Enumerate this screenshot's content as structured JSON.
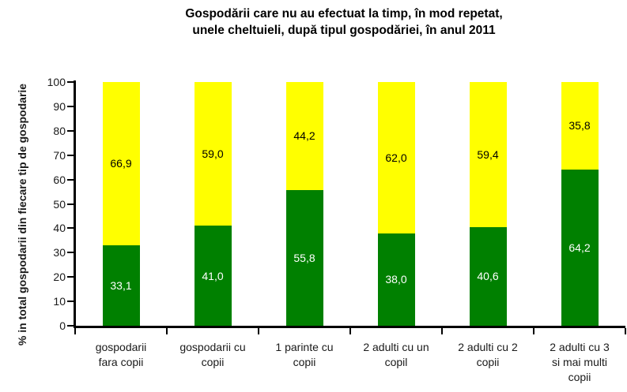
{
  "chart_data": {
    "type": "bar",
    "stacked": true,
    "title": "Gospodării care nu au efectuat la timp, în mod repetat, unele cheltuieli, după tipul gospodăriei, în anul 2011",
    "title_lines": [
      "Gospodării care nu au efectuat la timp, în mod repetat,",
      "unele cheltuieli, după tipul gospodăriei, în anul 2011"
    ],
    "ylabel": "% in total gospodarii din fiecare tip de gospodarie",
    "xlabel": "",
    "ylim": [
      0,
      100
    ],
    "yticks": [
      0,
      10,
      20,
      30,
      40,
      50,
      60,
      70,
      80,
      90,
      100
    ],
    "grid": false,
    "legend": "none",
    "categories": [
      "gospodarii fara copii",
      "gospodarii cu copii",
      "1 parinte cu copii",
      "2 adulti cu un copil",
      "2 adulti cu 2 copii",
      "2 adulti cu 3 si mai multi copii"
    ],
    "category_lines": [
      [
        "gospodarii",
        "fara copii"
      ],
      [
        "gospodarii cu",
        "copii"
      ],
      [
        "1 parinte cu",
        "copii"
      ],
      [
        "2 adulti cu un",
        "copil"
      ],
      [
        "2 adulti cu 2",
        "copii"
      ],
      [
        "2 adulti cu 3",
        "si mai multi",
        "copii"
      ]
    ],
    "series": [
      {
        "name": "green-bottom-segment",
        "color": "#008000",
        "label_color": "#ffffff",
        "values": [
          33.1,
          41.0,
          55.8,
          38.0,
          40.6,
          64.2
        ],
        "labels": [
          "33,1",
          "41,0",
          "55,8",
          "38,0",
          "40,6",
          "64,2"
        ]
      },
      {
        "name": "yellow-top-segment",
        "color": "#ffff00",
        "label_color": "#000000",
        "values": [
          66.9,
          59.0,
          44.2,
          62.0,
          59.4,
          35.8
        ],
        "labels": [
          "66,9",
          "59,0",
          "44,2",
          "62,0",
          "59,4",
          "35,8"
        ]
      }
    ],
    "axis_color": "#000000"
  }
}
